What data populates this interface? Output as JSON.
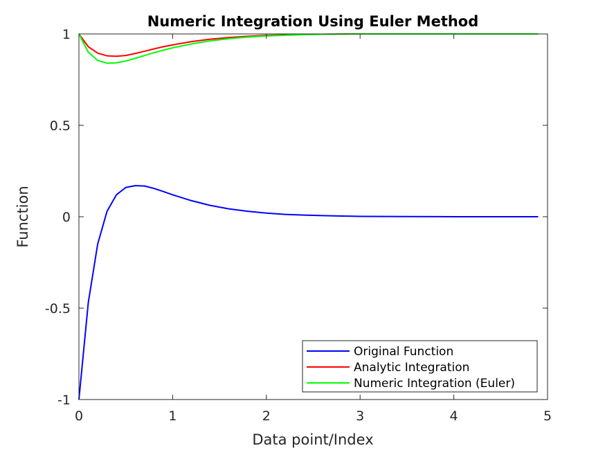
{
  "chart_data": {
    "type": "line",
    "title": "Numeric Integration Using Euler Method",
    "xlabel": "Data point/Index",
    "ylabel": "Function",
    "xlim": [
      0,
      5
    ],
    "ylim": [
      -1,
      1
    ],
    "xticks": [
      "0",
      "1",
      "2",
      "3",
      "4",
      "5"
    ],
    "yticks": [
      "-1",
      "-0.5",
      "0",
      "0.5",
      "1"
    ],
    "grid": false,
    "legend_position": "bottom-right",
    "series": [
      {
        "name": "Original Function",
        "color": "#0000ff",
        "x": [
          0,
          0.1,
          0.2,
          0.3,
          0.4,
          0.5,
          0.6,
          0.7,
          0.8,
          0.9,
          1.0,
          1.2,
          1.4,
          1.6,
          1.8,
          2.0,
          2.2,
          2.4,
          2.6,
          2.8,
          3.0,
          3.5,
          4.0,
          4.5,
          4.9
        ],
        "y": [
          -1,
          -0.47,
          -0.15,
          0.03,
          0.12,
          0.16,
          0.17,
          0.168,
          0.155,
          0.138,
          0.12,
          0.088,
          0.062,
          0.043,
          0.03,
          0.02,
          0.013,
          0.009,
          0.006,
          0.004,
          0.002,
          0.001,
          0,
          0,
          0
        ]
      },
      {
        "name": "Analytic Integration",
        "color": "#ff0000",
        "x": [
          0,
          0.1,
          0.2,
          0.3,
          0.4,
          0.5,
          0.6,
          0.7,
          0.8,
          0.9,
          1.0,
          1.2,
          1.4,
          1.6,
          1.8,
          2.0,
          2.2,
          2.4,
          2.6,
          2.8,
          3.0,
          3.5,
          4.0,
          4.5,
          4.9
        ],
        "y": [
          1,
          0.93,
          0.895,
          0.88,
          0.878,
          0.882,
          0.893,
          0.905,
          0.918,
          0.93,
          0.94,
          0.958,
          0.971,
          0.98,
          0.987,
          0.992,
          0.995,
          0.997,
          0.998,
          0.999,
          1,
          1,
          1,
          1,
          1
        ]
      },
      {
        "name": "Numeric Integration (Euler)",
        "color": "#00ff00",
        "x": [
          0,
          0.1,
          0.2,
          0.3,
          0.4,
          0.5,
          0.6,
          0.7,
          0.8,
          0.9,
          1.0,
          1.2,
          1.4,
          1.6,
          1.8,
          2.0,
          2.2,
          2.4,
          2.6,
          2.8,
          3.0,
          3.5,
          4.0,
          4.5,
          4.9
        ],
        "y": [
          1,
          0.9,
          0.855,
          0.84,
          0.842,
          0.852,
          0.866,
          0.882,
          0.897,
          0.911,
          0.924,
          0.945,
          0.962,
          0.974,
          0.983,
          0.989,
          0.993,
          0.996,
          0.998,
          0.999,
          1,
          1,
          1,
          1,
          1
        ]
      }
    ]
  }
}
